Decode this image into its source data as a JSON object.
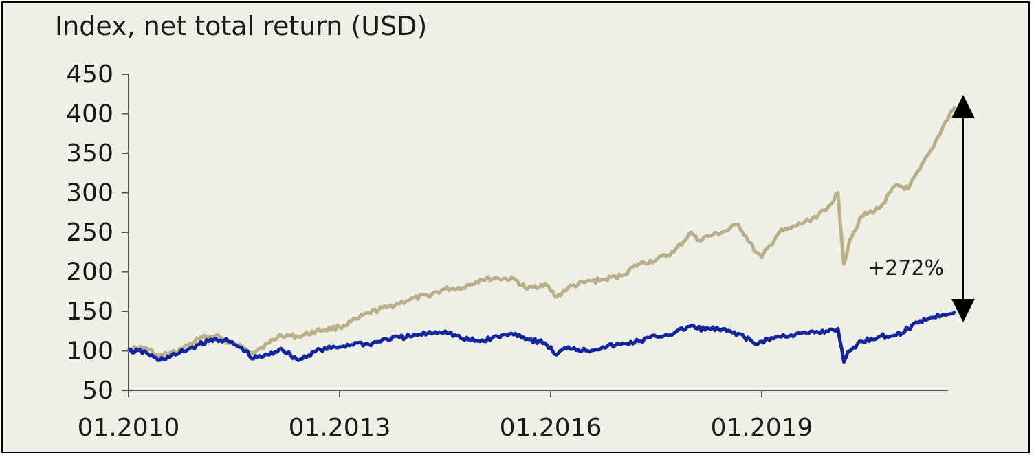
{
  "chart_data": {
    "type": "line",
    "title": "Index, net total return (USD)",
    "xlabel": "",
    "ylabel": "",
    "xlim": [
      "2010-01",
      "2021-10"
    ],
    "ylim": [
      50,
      450
    ],
    "yticks": [
      50,
      100,
      150,
      200,
      250,
      300,
      350,
      400,
      450
    ],
    "xticks": [
      "01.2010",
      "01.2013",
      "01.2016",
      "01.2019"
    ],
    "grid": false,
    "legend": "none",
    "annotation": {
      "text": "+272%",
      "from": 150,
      "to": 410,
      "at": "2021-10"
    },
    "colors": {
      "upper": "#b9b08a",
      "lower": "#13259a"
    },
    "series": [
      {
        "x": [
          "2010-01",
          "2010-04",
          "2010-06",
          "2010-09",
          "2011-01",
          "2011-04",
          "2011-06",
          "2011-09",
          "2011-10",
          "2012-01",
          "2012-03",
          "2012-06",
          "2012-09",
          "2013-01",
          "2013-04",
          "2013-06",
          "2013-09",
          "2014-01",
          "2014-04",
          "2014-07",
          "2014-10",
          "2015-01",
          "2015-04",
          "2015-07",
          "2015-09",
          "2015-12",
          "2016-02",
          "2016-04",
          "2016-07",
          "2016-10",
          "2017-01",
          "2017-04",
          "2017-07",
          "2017-10",
          "2018-01",
          "2018-02",
          "2018-04",
          "2018-07",
          "2018-09",
          "2018-12",
          "2019-01",
          "2019-04",
          "2019-06",
          "2019-09",
          "2019-12",
          "2020-02",
          "2020-03",
          "2020-04",
          "2020-06",
          "2020-09",
          "2020-12",
          "2021-02",
          "2021-04",
          "2021-06",
          "2021-08",
          "2021-10"
        ],
        "values": [
          102,
          104,
          93,
          98,
          115,
          120,
          110,
          103,
          98,
          110,
          120,
          118,
          125,
          130,
          140,
          148,
          155,
          165,
          170,
          178,
          180,
          190,
          192,
          190,
          178,
          185,
          168,
          180,
          187,
          190,
          195,
          210,
          215,
          225,
          250,
          240,
          245,
          252,
          260,
          225,
          218,
          250,
          255,
          265,
          278,
          300,
          210,
          240,
          270,
          280,
          310,
          305,
          330,
          355,
          385,
          410
        ]
      },
      {
        "x": [
          "2010-01",
          "2010-04",
          "2010-06",
          "2010-09",
          "2011-01",
          "2011-04",
          "2011-06",
          "2011-09",
          "2011-10",
          "2012-01",
          "2012-03",
          "2012-06",
          "2012-09",
          "2013-01",
          "2013-04",
          "2013-06",
          "2013-09",
          "2014-01",
          "2014-04",
          "2014-07",
          "2014-10",
          "2015-01",
          "2015-04",
          "2015-07",
          "2015-09",
          "2015-12",
          "2016-02",
          "2016-04",
          "2016-07",
          "2016-10",
          "2017-01",
          "2017-04",
          "2017-07",
          "2017-10",
          "2018-01",
          "2018-02",
          "2018-04",
          "2018-07",
          "2018-09",
          "2018-12",
          "2019-01",
          "2019-04",
          "2019-06",
          "2019-09",
          "2019-12",
          "2020-02",
          "2020-03",
          "2020-04",
          "2020-06",
          "2020-09",
          "2020-12",
          "2021-02",
          "2021-04",
          "2021-06",
          "2021-08",
          "2021-10"
        ],
        "values": [
          100,
          98,
          88,
          95,
          108,
          115,
          112,
          100,
          90,
          95,
          103,
          88,
          100,
          105,
          110,
          108,
          115,
          118,
          122,
          125,
          115,
          112,
          118,
          122,
          115,
          110,
          95,
          105,
          100,
          105,
          108,
          112,
          118,
          122,
          132,
          128,
          128,
          125,
          122,
          108,
          112,
          118,
          120,
          122,
          125,
          128,
          86,
          100,
          112,
          118,
          120,
          128,
          138,
          142,
          146,
          150
        ]
      }
    ]
  }
}
